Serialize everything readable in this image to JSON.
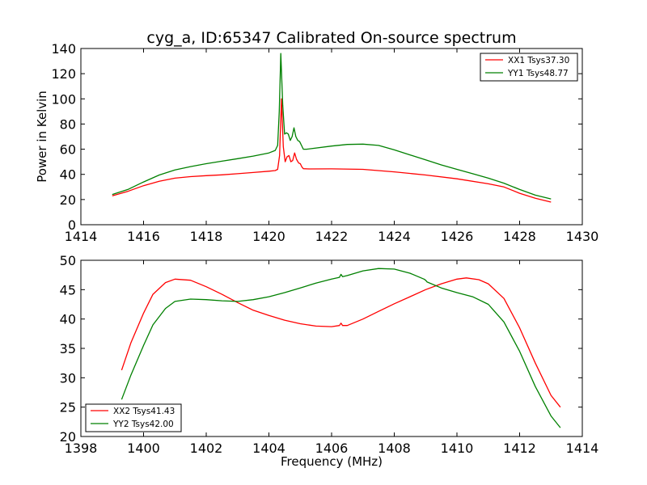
{
  "chart_data": [
    {
      "type": "line",
      "title": "cyg_a, ID:65347 Calibrated On-source spectrum",
      "xlabel": "",
      "ylabel": "Power in Kelvin",
      "xlim": [
        1414,
        1430
      ],
      "ylim": [
        0,
        140
      ],
      "xticks": [
        "1414",
        "1416",
        "1418",
        "1420",
        "1422",
        "1424",
        "1426",
        "1428",
        "1430"
      ],
      "yticks": [
        "0",
        "20",
        "40",
        "60",
        "80",
        "100",
        "120",
        "140"
      ],
      "legend_position": "top-right",
      "grid": false,
      "series": [
        {
          "name": "XX1 Tsys37.30",
          "color": "#ff0000",
          "points": [
            [
              1415.0,
              23
            ],
            [
              1415.5,
              26.5
            ],
            [
              1416.0,
              31
            ],
            [
              1416.5,
              34.5
            ],
            [
              1417.0,
              37
            ],
            [
              1417.5,
              38.2
            ],
            [
              1418.0,
              39
            ],
            [
              1418.5,
              39.6
            ],
            [
              1419.0,
              40.5
            ],
            [
              1419.5,
              41.5
            ],
            [
              1420.0,
              42.5
            ],
            [
              1420.2,
              43
            ],
            [
              1420.28,
              44
            ],
            [
              1420.34,
              55
            ],
            [
              1420.4,
              100
            ],
            [
              1420.46,
              62
            ],
            [
              1420.52,
              50
            ],
            [
              1420.58,
              54
            ],
            [
              1420.64,
              55
            ],
            [
              1420.7,
              50
            ],
            [
              1420.76,
              51
            ],
            [
              1420.82,
              57
            ],
            [
              1420.88,
              52
            ],
            [
              1420.95,
              49
            ],
            [
              1421.0,
              48.5
            ],
            [
              1421.05,
              46
            ],
            [
              1421.1,
              44.5
            ],
            [
              1421.3,
              44.3
            ],
            [
              1422.0,
              44.4
            ],
            [
              1423.0,
              44
            ],
            [
              1424.0,
              42
            ],
            [
              1425.0,
              39.5
            ],
            [
              1426.0,
              36.5
            ],
            [
              1427.0,
              32.5
            ],
            [
              1427.5,
              30
            ],
            [
              1428.0,
              25
            ],
            [
              1428.5,
              21
            ],
            [
              1429.0,
              18
            ]
          ]
        },
        {
          "name": "YY1 Tsys48.77",
          "color": "#008000",
          "points": [
            [
              1415.0,
              24
            ],
            [
              1415.5,
              28
            ],
            [
              1416.0,
              34
            ],
            [
              1416.5,
              39.5
            ],
            [
              1417.0,
              43.5
            ],
            [
              1417.5,
              46.2
            ],
            [
              1418.0,
              48.5
            ],
            [
              1418.5,
              50.5
            ],
            [
              1419.0,
              52.5
            ],
            [
              1419.5,
              54.5
            ],
            [
              1420.0,
              57
            ],
            [
              1420.2,
              59
            ],
            [
              1420.28,
              63
            ],
            [
              1420.33,
              90
            ],
            [
              1420.38,
              136
            ],
            [
              1420.44,
              95
            ],
            [
              1420.5,
              72
            ],
            [
              1420.56,
              73
            ],
            [
              1420.62,
              72
            ],
            [
              1420.68,
              67
            ],
            [
              1420.74,
              70
            ],
            [
              1420.8,
              77
            ],
            [
              1420.86,
              70
            ],
            [
              1420.92,
              67
            ],
            [
              1420.98,
              66
            ],
            [
              1421.04,
              63
            ],
            [
              1421.1,
              60
            ],
            [
              1421.2,
              60
            ],
            [
              1422.0,
              62.5
            ],
            [
              1422.5,
              63.8
            ],
            [
              1423.0,
              64
            ],
            [
              1423.5,
              63
            ],
            [
              1424.0,
              59.5
            ],
            [
              1424.5,
              55.5
            ],
            [
              1425.0,
              51.5
            ],
            [
              1425.5,
              47.5
            ],
            [
              1426.0,
              44
            ],
            [
              1426.5,
              40.5
            ],
            [
              1427.0,
              37
            ],
            [
              1427.5,
              33
            ],
            [
              1428.0,
              28
            ],
            [
              1428.5,
              23.5
            ],
            [
              1429.0,
              20.5
            ]
          ]
        }
      ]
    },
    {
      "type": "line",
      "title": "",
      "xlabel": "Frequency (MHz)",
      "ylabel": "",
      "xlim": [
        1398,
        1414
      ],
      "ylim": [
        20,
        50
      ],
      "xticks": [
        "1398",
        "1400",
        "1402",
        "1404",
        "1406",
        "1408",
        "1410",
        "1412",
        "1414"
      ],
      "yticks": [
        "20",
        "25",
        "30",
        "35",
        "40",
        "45",
        "50"
      ],
      "legend_position": "bottom-left",
      "grid": false,
      "series": [
        {
          "name": "XX2 Tsys41.43",
          "color": "#ff0000",
          "points": [
            [
              1399.3,
              31.3
            ],
            [
              1399.6,
              36
            ],
            [
              1400.0,
              41
            ],
            [
              1400.3,
              44.2
            ],
            [
              1400.7,
              46.2
            ],
            [
              1401.0,
              46.8
            ],
            [
              1401.5,
              46.6
            ],
            [
              1402.0,
              45.5
            ],
            [
              1402.5,
              44.2
            ],
            [
              1403.0,
              42.8
            ],
            [
              1403.5,
              41.5
            ],
            [
              1404.0,
              40.6
            ],
            [
              1404.5,
              39.8
            ],
            [
              1405.0,
              39.2
            ],
            [
              1405.5,
              38.8
            ],
            [
              1406.0,
              38.7
            ],
            [
              1406.25,
              38.9
            ],
            [
              1406.3,
              39.3
            ],
            [
              1406.35,
              38.9
            ],
            [
              1406.5,
              38.9
            ],
            [
              1407.0,
              40
            ],
            [
              1407.5,
              41.3
            ],
            [
              1408.0,
              42.6
            ],
            [
              1408.5,
              43.8
            ],
            [
              1409.0,
              45
            ],
            [
              1409.5,
              46
            ],
            [
              1410.0,
              46.8
            ],
            [
              1410.3,
              47
            ],
            [
              1410.7,
              46.7
            ],
            [
              1411.0,
              46
            ],
            [
              1411.5,
              43.5
            ],
            [
              1412.0,
              38.5
            ],
            [
              1412.5,
              32.5
            ],
            [
              1413.0,
              27
            ],
            [
              1413.3,
              25
            ]
          ]
        },
        {
          "name": "YY2 Tsys42.00",
          "color": "#008000",
          "points": [
            [
              1399.3,
              26.3
            ],
            [
              1399.6,
              30.5
            ],
            [
              1400.0,
              35.5
            ],
            [
              1400.3,
              39
            ],
            [
              1400.7,
              41.8
            ],
            [
              1401.0,
              43
            ],
            [
              1401.5,
              43.4
            ],
            [
              1402.0,
              43.3
            ],
            [
              1402.5,
              43.1
            ],
            [
              1403.0,
              43
            ],
            [
              1403.5,
              43.3
            ],
            [
              1404.0,
              43.8
            ],
            [
              1404.5,
              44.5
            ],
            [
              1405.0,
              45.3
            ],
            [
              1405.5,
              46.1
            ],
            [
              1406.0,
              46.8
            ],
            [
              1406.25,
              47.1
            ],
            [
              1406.3,
              47.6
            ],
            [
              1406.35,
              47.2
            ],
            [
              1406.5,
              47.4
            ],
            [
              1407.0,
              48.2
            ],
            [
              1407.5,
              48.6
            ],
            [
              1408.0,
              48.5
            ],
            [
              1408.5,
              47.8
            ],
            [
              1408.95,
              46.8
            ],
            [
              1409.0,
              46.6
            ],
            [
              1409.05,
              46.3
            ],
            [
              1409.5,
              45.3
            ],
            [
              1410.0,
              44.5
            ],
            [
              1410.5,
              43.8
            ],
            [
              1411.0,
              42.5
            ],
            [
              1411.5,
              39.5
            ],
            [
              1412.0,
              34.5
            ],
            [
              1412.5,
              28.5
            ],
            [
              1413.0,
              23.5
            ],
            [
              1413.3,
              21.5
            ]
          ]
        }
      ]
    }
  ]
}
